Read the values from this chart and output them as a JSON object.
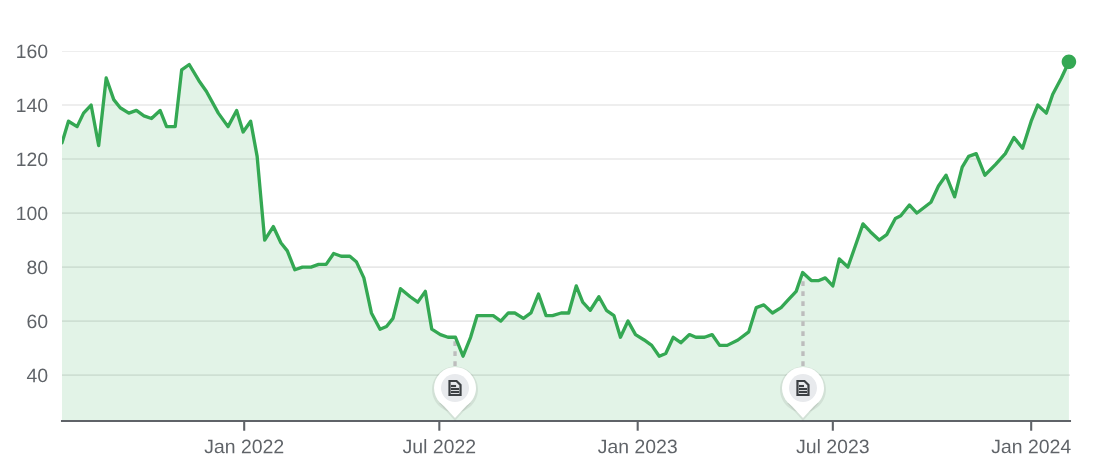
{
  "chart_data": {
    "type": "area",
    "x": [
      "2021-07-16",
      "2021-07-22",
      "2021-07-30",
      "2021-08-05",
      "2021-08-12",
      "2021-08-19",
      "2021-08-26",
      "2021-09-02",
      "2021-09-08",
      "2021-09-16",
      "2021-09-23",
      "2021-09-30",
      "2021-10-07",
      "2021-10-15",
      "2021-10-21",
      "2021-10-29",
      "2021-11-04",
      "2021-11-11",
      "2021-11-20",
      "2021-11-27",
      "2021-12-08",
      "2021-12-17",
      "2021-12-25",
      "2021-12-31",
      "2022-01-07",
      "2022-01-13",
      "2022-01-20",
      "2022-01-28",
      "2022-02-04",
      "2022-02-10",
      "2022-02-17",
      "2022-02-24",
      "2022-03-04",
      "2022-03-11",
      "2022-03-18",
      "2022-03-25",
      "2022-04-01",
      "2022-04-09",
      "2022-04-15",
      "2022-04-22",
      "2022-04-29",
      "2022-05-07",
      "2022-05-13",
      "2022-05-19",
      "2022-05-26",
      "2022-06-04",
      "2022-06-11",
      "2022-06-18",
      "2022-06-24",
      "2022-07-02",
      "2022-07-09",
      "2022-07-16",
      "2022-07-23",
      "2022-07-30",
      "2022-08-05",
      "2022-08-12",
      "2022-08-20",
      "2022-08-27",
      "2022-09-03",
      "2022-09-09",
      "2022-09-17",
      "2022-09-24",
      "2022-10-01",
      "2022-10-08",
      "2022-10-14",
      "2022-10-22",
      "2022-10-29",
      "2022-11-05",
      "2022-11-11",
      "2022-11-18",
      "2022-11-26",
      "2022-12-03",
      "2022-12-10",
      "2022-12-16",
      "2022-12-23",
      "2022-12-30",
      "2023-01-07",
      "2023-01-14",
      "2023-01-21",
      "2023-01-27",
      "2023-02-03",
      "2023-02-10",
      "2023-02-18",
      "2023-02-24",
      "2023-03-04",
      "2023-03-11",
      "2023-03-18",
      "2023-03-25",
      "2023-04-04",
      "2023-04-14",
      "2023-04-21",
      "2023-04-28",
      "2023-05-06",
      "2023-05-14",
      "2023-05-21",
      "2023-05-28",
      "2023-06-03",
      "2023-06-11",
      "2023-06-18",
      "2023-06-24",
      "2023-07-01",
      "2023-07-07",
      "2023-07-15",
      "2023-07-22",
      "2023-07-29",
      "2023-08-05",
      "2023-08-13",
      "2023-08-20",
      "2023-08-28",
      "2023-09-02",
      "2023-09-10",
      "2023-09-17",
      "2023-09-30",
      "2023-10-07",
      "2023-10-14",
      "2023-10-22",
      "2023-10-29",
      "2023-11-04",
      "2023-11-11",
      "2023-11-19",
      "2023-11-29",
      "2023-12-08",
      "2023-12-16",
      "2023-12-24",
      "2024-01-01",
      "2024-01-07",
      "2024-01-15",
      "2024-01-21",
      "2024-01-29",
      "2024-02-05"
    ],
    "series": [
      {
        "color": "#34a853",
        "values": [
          126,
          134,
          132,
          137,
          140,
          125,
          150,
          142,
          139,
          137,
          138,
          136,
          135,
          138,
          132,
          132,
          153,
          155,
          149,
          145,
          137,
          132,
          138,
          130,
          134,
          121,
          90,
          95,
          89,
          86,
          79,
          80,
          80,
          81,
          81,
          85,
          84,
          84,
          82,
          76,
          63,
          57,
          58,
          61,
          72,
          69,
          67,
          71,
          57,
          55,
          54,
          54,
          47,
          54,
          62,
          62,
          62,
          60,
          63,
          63,
          61,
          63,
          70,
          62,
          62,
          63,
          63,
          73,
          67,
          64,
          69,
          64,
          62,
          54,
          60,
          55,
          53,
          51,
          47,
          48,
          54,
          52,
          55,
          54,
          54,
          55,
          51,
          51,
          53,
          56,
          65,
          66,
          63,
          65,
          68,
          71,
          78,
          75,
          75,
          76,
          73,
          83,
          80,
          88,
          96,
          93,
          90,
          92,
          98,
          99,
          103,
          100,
          104,
          110,
          114,
          106,
          117,
          121,
          122,
          114,
          118,
          122,
          128,
          124,
          134,
          140,
          137,
          144,
          150,
          156
        ]
      },
      {
        "type": "scatter",
        "color": "#34a853",
        "marker": "circle",
        "x": [
          "2024-02-05"
        ],
        "values": [
          156
        ]
      }
    ],
    "xlim": [
      "2021-07-16",
      "2024-02-06"
    ],
    "xticks": [
      {
        "value": "2022-01-01",
        "label": "Jan 2022"
      },
      {
        "value": "2022-07-01",
        "label": "Jul 2022"
      },
      {
        "value": "2023-01-01",
        "label": "Jan 2023"
      },
      {
        "value": "2023-07-01",
        "label": "Jul 2023"
      },
      {
        "value": "2024-01-01",
        "label": "Jan 2024"
      }
    ],
    "ylim": [
      23,
      160
    ],
    "yticks": [
      40,
      60,
      80,
      100,
      120,
      140,
      160
    ],
    "grid": "y"
  }
}
